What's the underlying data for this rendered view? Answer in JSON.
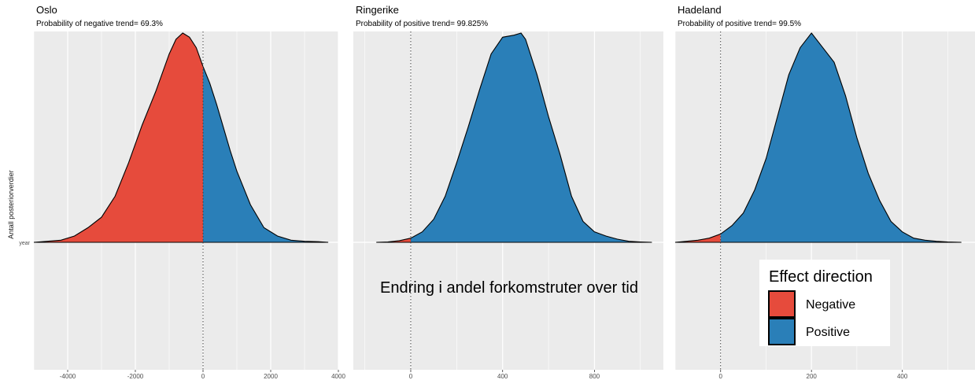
{
  "ylabel": "Antall posteriorverdier",
  "y_tick": "year",
  "overlay_text": "Endring i andel forkomstruter over tid",
  "legend": {
    "title": "Effect direction",
    "entries": [
      {
        "label": "Negative",
        "color": "#E64B3C"
      },
      {
        "label": "Positive",
        "color": "#2A7FB8"
      }
    ]
  },
  "colors": {
    "negative": "#E64B3C",
    "positive": "#2A7FB8",
    "panel_bg": "#EBEBEB",
    "grid": "#ffffff"
  },
  "chart_data": [
    {
      "type": "area",
      "title": "Oslo",
      "subtitle": "Probability of negative trend= 69.3%",
      "xlim": [
        -5000,
        4000
      ],
      "x_ticks": [
        -4000,
        -2000,
        0,
        2000,
        4000
      ],
      "x_tick_labels": [
        "-4000",
        "-2000",
        "0",
        "2000",
        "4000"
      ],
      "zero_line": 0,
      "density": {
        "x": [
          -5000,
          -4600,
          -4200,
          -3800,
          -3400,
          -3000,
          -2600,
          -2200,
          -1800,
          -1400,
          -1000,
          -800,
          -600,
          -400,
          -200,
          0,
          200,
          400,
          600,
          800,
          1000,
          1400,
          1800,
          2200,
          2600,
          3000,
          3400,
          3700
        ],
        "y": [
          0,
          0.005,
          0.01,
          0.03,
          0.07,
          0.12,
          0.22,
          0.38,
          0.56,
          0.72,
          0.9,
          0.97,
          1.0,
          0.98,
          0.93,
          0.84,
          0.76,
          0.66,
          0.55,
          0.44,
          0.34,
          0.18,
          0.07,
          0.03,
          0.01,
          0.005,
          0.003,
          0
        ]
      }
    },
    {
      "type": "area",
      "title": "Ringerike",
      "subtitle": "Probability of positive trend= 99.825%",
      "xlim": [
        -250,
        1100
      ],
      "x_ticks": [
        0,
        400,
        800
      ],
      "x_tick_labels": [
        "0",
        "400",
        "800"
      ],
      "zero_line": 0,
      "density": {
        "x": [
          -150,
          -100,
          -50,
          0,
          50,
          100,
          150,
          200,
          250,
          300,
          350,
          400,
          450,
          480,
          500,
          550,
          600,
          650,
          700,
          750,
          800,
          850,
          900,
          950,
          1000,
          1050
        ],
        "y": [
          0,
          0.002,
          0.008,
          0.02,
          0.05,
          0.11,
          0.22,
          0.38,
          0.55,
          0.73,
          0.9,
          0.98,
          0.99,
          1.0,
          0.97,
          0.8,
          0.6,
          0.42,
          0.22,
          0.1,
          0.05,
          0.03,
          0.015,
          0.005,
          0.002,
          0
        ]
      }
    },
    {
      "type": "area",
      "title": "Hadeland",
      "subtitle": "Probability of positive trend= 99.5%",
      "xlim": [
        -100,
        560
      ],
      "x_ticks": [
        0,
        200,
        400
      ],
      "x_tick_labels": [
        "0",
        "200",
        "400"
      ],
      "zero_line": 0,
      "density": {
        "x": [
          -100,
          -75,
          -50,
          -25,
          0,
          25,
          50,
          75,
          100,
          125,
          150,
          175,
          200,
          225,
          250,
          275,
          300,
          325,
          350,
          375,
          400,
          425,
          450,
          475,
          500,
          530
        ],
        "y": [
          0,
          0.005,
          0.01,
          0.02,
          0.04,
          0.08,
          0.14,
          0.25,
          0.4,
          0.6,
          0.8,
          0.93,
          1.0,
          0.93,
          0.86,
          0.7,
          0.5,
          0.33,
          0.2,
          0.1,
          0.05,
          0.02,
          0.01,
          0.005,
          0.002,
          0
        ]
      }
    }
  ]
}
